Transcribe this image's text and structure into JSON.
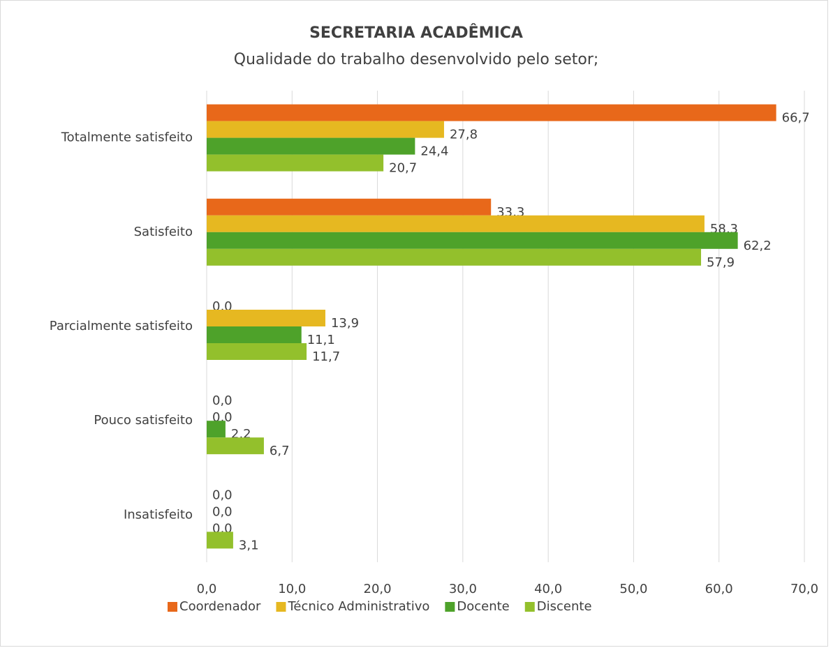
{
  "chart_data": {
    "type": "bar",
    "orientation": "horizontal",
    "title": "SECRETARIA ACADÊMICA",
    "subtitle": "Qualidade do trabalho desenvolvido pelo setor;",
    "categories": [
      "Totalmente satisfeito",
      "Satisfeito",
      "Parcialmente satisfeito",
      "Pouco satisfeito",
      "Insatisfeito"
    ],
    "series": [
      {
        "name": "Coordenador",
        "color": "#e8681a",
        "values": [
          66.7,
          33.3,
          0,
          0,
          0
        ],
        "value_labels": [
          "66,7",
          "33,3",
          "0,0",
          "0,0",
          "0,0"
        ]
      },
      {
        "name": "Técnico Administrativo",
        "color": "#e6b821",
        "values": [
          27.8,
          58.3,
          13.9,
          0,
          0
        ],
        "value_labels": [
          "27,8",
          "58,3",
          "13,9",
          "0,0",
          "0,0"
        ]
      },
      {
        "name": "Docente",
        "color": "#4ea22a",
        "values": [
          24.4,
          62.2,
          11.1,
          2.2,
          0
        ],
        "value_labels": [
          "24,4",
          "62,2",
          "11,1",
          "2,2",
          "0,0"
        ]
      },
      {
        "name": "Discente",
        "color": "#93c02c",
        "values": [
          20.7,
          57.9,
          11.7,
          6.7,
          3.1
        ],
        "value_labels": [
          "20,7",
          "57,9",
          "11,7",
          "6,7",
          "3,1"
        ]
      }
    ],
    "xlim": [
      0,
      70
    ],
    "xticks": [
      {
        "value": 0,
        "label": "0,0"
      },
      {
        "value": 10,
        "label": "10,0"
      },
      {
        "value": 20,
        "label": "20,0"
      },
      {
        "value": 30,
        "label": "30,0"
      },
      {
        "value": 40,
        "label": "40,0"
      },
      {
        "value": 50,
        "label": "50,0"
      },
      {
        "value": 60,
        "label": "60,0"
      },
      {
        "value": 70,
        "label": "70,0"
      }
    ],
    "grid": true,
    "legend": "bottom"
  }
}
